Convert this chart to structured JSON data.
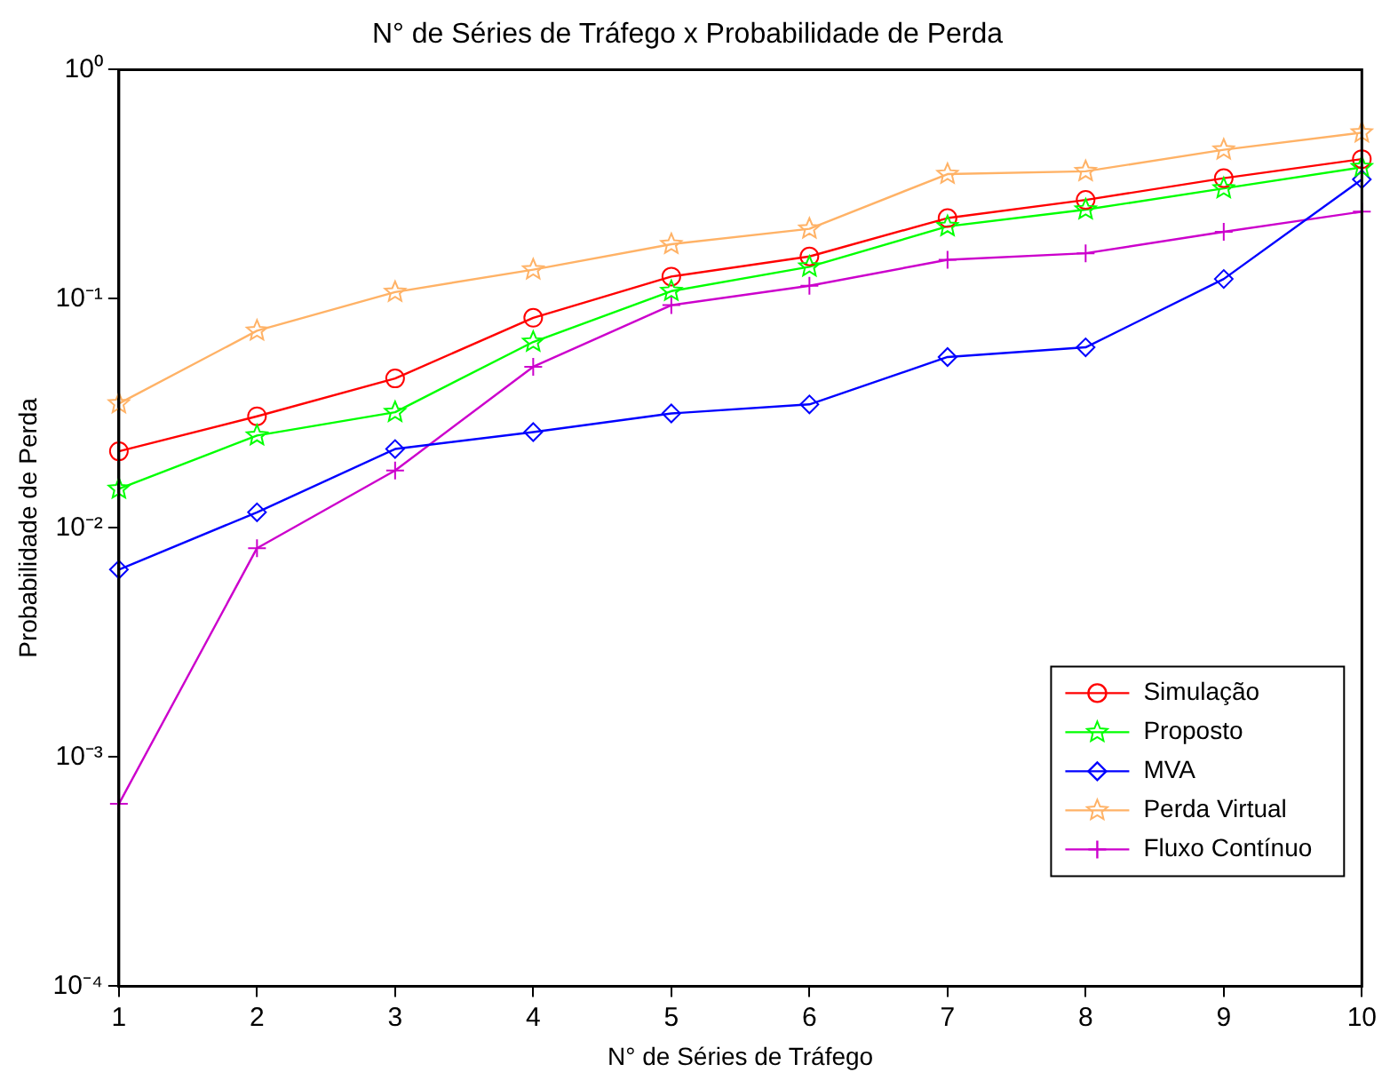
{
  "chart_data": {
    "type": "line",
    "title": "N° de Séries de Tráfego x Probabilidade de Perda",
    "xlabel": "N° de Séries de Tráfego",
    "ylabel": "Probabilidade de Perda",
    "x": [
      1,
      2,
      3,
      4,
      5,
      6,
      7,
      8,
      9,
      10
    ],
    "series": [
      {
        "name": "Simulação",
        "color": "#ff0000",
        "marker": "circle",
        "values": [
          0.0216,
          0.0307,
          0.0449,
          0.0826,
          0.125,
          0.153,
          0.225,
          0.27,
          0.336,
          0.407
        ]
      },
      {
        "name": "Proposto",
        "color": "#00ff00",
        "marker": "star",
        "values": [
          0.0148,
          0.0253,
          0.032,
          0.0648,
          0.108,
          0.138,
          0.207,
          0.245,
          0.303,
          0.375
        ]
      },
      {
        "name": "MVA",
        "color": "#0000ff",
        "marker": "diamond",
        "values": [
          0.00658,
          0.0117,
          0.0221,
          0.0262,
          0.0316,
          0.0346,
          0.0557,
          0.0614,
          0.122,
          0.332
        ]
      },
      {
        "name": "Perda Virtual",
        "color": "#ffb266",
        "marker": "star",
        "values": [
          0.0349,
          0.0725,
          0.107,
          0.134,
          0.173,
          0.202,
          0.35,
          0.36,
          0.447,
          0.531
        ]
      },
      {
        "name": "Fluxo Contínuo",
        "color": "#cc00cc",
        "marker": "cross",
        "values": [
          0.000625,
          0.00816,
          0.0178,
          0.0505,
          0.0938,
          0.114,
          0.148,
          0.158,
          0.196,
          0.24
        ]
      }
    ],
    "xlim": [
      1,
      10
    ],
    "xticks": [
      1,
      2,
      3,
      4,
      5,
      6,
      7,
      8,
      9,
      10
    ],
    "ylim": [
      0.0001,
      1
    ],
    "yticks": [
      {
        "value": 0.0001,
        "label": "10⁻⁴"
      },
      {
        "value": 0.001,
        "label": "10⁻³"
      },
      {
        "value": 0.01,
        "label": "10⁻²"
      },
      {
        "value": 0.1,
        "label": "10⁻¹"
      },
      {
        "value": 1,
        "label": "10⁰"
      }
    ],
    "log": true,
    "grid": false,
    "legend": "bottom right",
    "line_style": "solid"
  }
}
